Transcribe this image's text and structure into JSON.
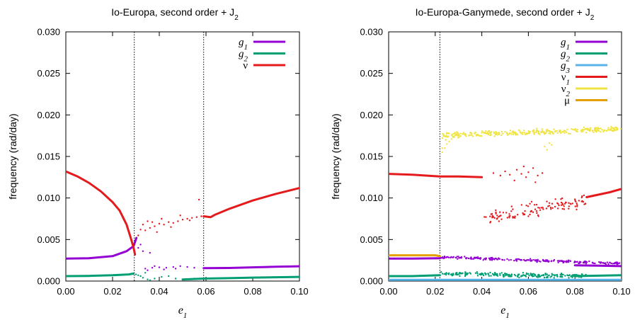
{
  "chart_data": [
    {
      "type": "scatter",
      "title": "Io-Europa, second order + J",
      "title_sub": "2",
      "xlabel": "e",
      "xlabel_sub": "1",
      "ylabel": "frequency (rad/day)",
      "xlim": [
        0,
        0.1
      ],
      "ylim": [
        0,
        0.03
      ],
      "xticks": [
        "0.00",
        "0.02",
        "0.04",
        "0.06",
        "0.08",
        "0.10"
      ],
      "yticks": [
        "0.000",
        "0.005",
        "0.010",
        "0.015",
        "0.020",
        "0.025",
        "0.030"
      ],
      "vlines": [
        0.0293,
        0.059
      ],
      "legend_position": "top-right",
      "series": [
        {
          "name": "g",
          "name_sub": "1",
          "color": "#9400d3",
          "curve": [
            [
              0,
              0.0027
            ],
            [
              0.01,
              0.00275
            ],
            [
              0.02,
              0.003
            ],
            [
              0.026,
              0.0036
            ],
            [
              0.029,
              0.0042
            ],
            [
              0.0302,
              0.0052
            ]
          ],
          "curve2": [
            [
              0.059,
              0.00155
            ],
            [
              0.07,
              0.00158
            ],
            [
              0.08,
              0.00165
            ],
            [
              0.09,
              0.00172
            ],
            [
              0.1,
              0.00178
            ]
          ],
          "scatter": [
            [
              0.034,
              0.0015
            ],
            [
              0.037,
              0.0016
            ],
            [
              0.04,
              0.00165
            ],
            [
              0.043,
              0.0016
            ],
            [
              0.046,
              0.0017
            ],
            [
              0.049,
              0.0018
            ],
            [
              0.052,
              0.0017
            ],
            [
              0.055,
              0.0016
            ],
            [
              0.035,
              0.0013
            ],
            [
              0.038,
              0.0018
            ],
            [
              0.042,
              0.0014
            ],
            [
              0.047,
              0.0015
            ],
            [
              0.031,
              0.004
            ],
            [
              0.033,
              0.0036
            ],
            [
              0.036,
              0.0034
            ],
            [
              0.032,
              0.0044
            ]
          ]
        },
        {
          "name": "g",
          "name_sub": "2",
          "color": "#009e73",
          "curve": [
            [
              0,
              0.0006
            ],
            [
              0.01,
              0.00062
            ],
            [
              0.02,
              0.0007
            ],
            [
              0.027,
              0.0008
            ],
            [
              0.029,
              0.0009
            ]
          ],
          "curve2": [
            [
              0.05,
              0.0002
            ],
            [
              0.059,
              0.0003
            ],
            [
              0.07,
              0.00035
            ],
            [
              0.08,
              0.00042
            ],
            [
              0.09,
              0.00046
            ],
            [
              0.1,
              0.0005
            ]
          ],
          "scatter": [
            [
              0.03,
              0.0008
            ],
            [
              0.031,
              0.0007
            ],
            [
              0.032,
              0.0006
            ],
            [
              0.033,
              0.0004
            ],
            [
              0.036,
              0.0001
            ],
            [
              0.034,
              0.001
            ],
            [
              0.035,
              0.0002
            ],
            [
              0.038,
              0.0003
            ],
            [
              0.041,
              0.0005
            ],
            [
              0.044,
              0.0006
            ],
            [
              0.047,
              0.0003
            ],
            [
              0.05,
              0.0002
            ],
            [
              0.053,
              0.00025
            ],
            [
              0.055,
              0.0003
            ]
          ]
        },
        {
          "name": "ν",
          "name_sub": "",
          "color": "#e41a1c",
          "curve": [
            [
              0,
              0.0132
            ],
            [
              0.005,
              0.0126
            ],
            [
              0.01,
              0.0118
            ],
            [
              0.015,
              0.0108
            ],
            [
              0.02,
              0.0095
            ],
            [
              0.023,
              0.0085
            ],
            [
              0.026,
              0.0068
            ],
            [
              0.028,
              0.005
            ],
            [
              0.029,
              0.004
            ],
            [
              0.0296,
              0.0032
            ]
          ],
          "curve2": [
            [
              0.059,
              0.0078
            ],
            [
              0.062,
              0.0077
            ],
            [
              0.064,
              0.008
            ],
            [
              0.07,
              0.0087
            ],
            [
              0.08,
              0.0097
            ],
            [
              0.09,
              0.0105
            ],
            [
              0.1,
              0.0112
            ]
          ],
          "scatter": [
            [
              0.031,
              0.0055
            ],
            [
              0.032,
              0.0062
            ],
            [
              0.033,
              0.0068
            ],
            [
              0.034,
              0.0061
            ],
            [
              0.035,
              0.0072
            ],
            [
              0.036,
              0.0064
            ],
            [
              0.037,
              0.0071
            ],
            [
              0.038,
              0.0066
            ],
            [
              0.04,
              0.0069
            ],
            [
              0.042,
              0.0068
            ],
            [
              0.044,
              0.0071
            ],
            [
              0.046,
              0.007
            ],
            [
              0.048,
              0.0072
            ],
            [
              0.05,
              0.0074
            ],
            [
              0.052,
              0.0075
            ],
            [
              0.054,
              0.0076
            ],
            [
              0.056,
              0.0077
            ],
            [
              0.058,
              0.0078
            ],
            [
              0.057,
              0.0098
            ],
            [
              0.039,
              0.0059
            ],
            [
              0.041,
              0.0075
            ],
            [
              0.045,
              0.0065
            ],
            [
              0.049,
              0.0079
            ],
            [
              0.053,
              0.0073
            ]
          ]
        }
      ]
    },
    {
      "type": "scatter",
      "title": "Io-Europa-Ganymede, second order + J",
      "title_sub": "2",
      "xlabel": "e",
      "xlabel_sub": "1",
      "ylabel": "frequency (rad/day)",
      "xlim": [
        0,
        0.1
      ],
      "ylim": [
        0,
        0.03
      ],
      "xticks": [
        "0.00",
        "0.02",
        "0.04",
        "0.06",
        "0.08",
        "0.10"
      ],
      "yticks": [
        "0.000",
        "0.005",
        "0.010",
        "0.015",
        "0.020",
        "0.025",
        "0.030"
      ],
      "vlines": [
        0.022
      ],
      "legend_position": "top-right",
      "series": [
        {
          "name": "g",
          "name_sub": "1",
          "color": "#9400d3",
          "curve": [
            [
              0,
              0.0027
            ],
            [
              0.01,
              0.0027
            ],
            [
              0.022,
              0.00275
            ]
          ],
          "curve2": [
            [
              0.08,
              0.0019
            ],
            [
              0.09,
              0.00185
            ],
            [
              0.1,
              0.0018
            ]
          ],
          "scatter_band": {
            "x": [
              0.022,
              0.1
            ],
            "y_start": 0.0029,
            "y_end": 0.0021,
            "spread": 0.00022,
            "count": 230
          }
        },
        {
          "name": "g",
          "name_sub": "2",
          "color": "#009e73",
          "curve": [
            [
              0,
              0.0006
            ],
            [
              0.01,
              0.0006
            ],
            [
              0.022,
              0.0007
            ]
          ],
          "curve2": [
            [
              0.08,
              0.0006
            ],
            [
              0.09,
              0.00065
            ],
            [
              0.1,
              0.0007
            ]
          ],
          "scatter_band": {
            "x": [
              0.022,
              0.085
            ],
            "y_start": 0.0009,
            "y_end": 0.0006,
            "spread": 0.00035,
            "count": 230
          }
        },
        {
          "name": "g",
          "name_sub": "3",
          "color": "#56b4e9",
          "curve": [
            [
              0,
              0.00015
            ],
            [
              0.05,
              0.00015
            ],
            [
              0.1,
              0.00015
            ]
          ]
        },
        {
          "name": "ν",
          "name_sub": "1",
          "color": "#e41a1c",
          "curve": [
            [
              0,
              0.0129
            ],
            [
              0.01,
              0.0128
            ],
            [
              0.022,
              0.0126
            ],
            [
              0.03,
              0.0126
            ],
            [
              0.04,
              0.0125
            ]
          ],
          "curve2": [
            [
              0.085,
              0.0101
            ],
            [
              0.09,
              0.0104
            ],
            [
              0.095,
              0.0107
            ],
            [
              0.1,
              0.0111
            ]
          ],
          "scatter_band": {
            "x": [
              0.041,
              0.085
            ],
            "y_start": 0.0075,
            "y_end": 0.0097,
            "spread": 0.0012,
            "count": 120
          },
          "scatter": [
            [
              0.045,
              0.013
            ],
            [
              0.048,
              0.0127
            ],
            [
              0.05,
              0.0132
            ],
            [
              0.052,
              0.0128
            ],
            [
              0.055,
              0.0134
            ],
            [
              0.057,
              0.0129
            ],
            [
              0.059,
              0.0125
            ],
            [
              0.06,
              0.0131
            ],
            [
              0.062,
              0.0136
            ],
            [
              0.064,
              0.0127
            ],
            [
              0.066,
              0.013
            ],
            [
              0.054,
              0.0121
            ],
            [
              0.058,
              0.0138
            ],
            [
              0.063,
              0.0119
            ]
          ]
        },
        {
          "name": "ν",
          "name_sub": "2",
          "color": "#f0e442",
          "scatter_band": {
            "x": [
              0.023,
              0.1
            ],
            "y_start": 0.0175,
            "y_end": 0.0183,
            "spread": 0.0005,
            "count": 300
          },
          "scatter": [
            [
              0.023,
              0.0155
            ],
            [
              0.024,
              0.016
            ],
            [
              0.025,
              0.0165
            ],
            [
              0.026,
              0.0168
            ],
            [
              0.027,
              0.0171
            ],
            [
              0.023,
              0.016
            ],
            [
              0.0245,
              0.017
            ],
            [
              0.067,
              0.0162
            ],
            [
              0.068,
              0.0158
            ],
            [
              0.069,
              0.0166
            ],
            [
              0.07,
              0.0164
            ]
          ]
        },
        {
          "name": "μ",
          "name_sub": "",
          "color": "#e69f00",
          "curve": [
            [
              0,
              0.0031
            ],
            [
              0.01,
              0.0031
            ],
            [
              0.02,
              0.0031
            ],
            [
              0.022,
              0.003
            ]
          ]
        }
      ]
    }
  ]
}
